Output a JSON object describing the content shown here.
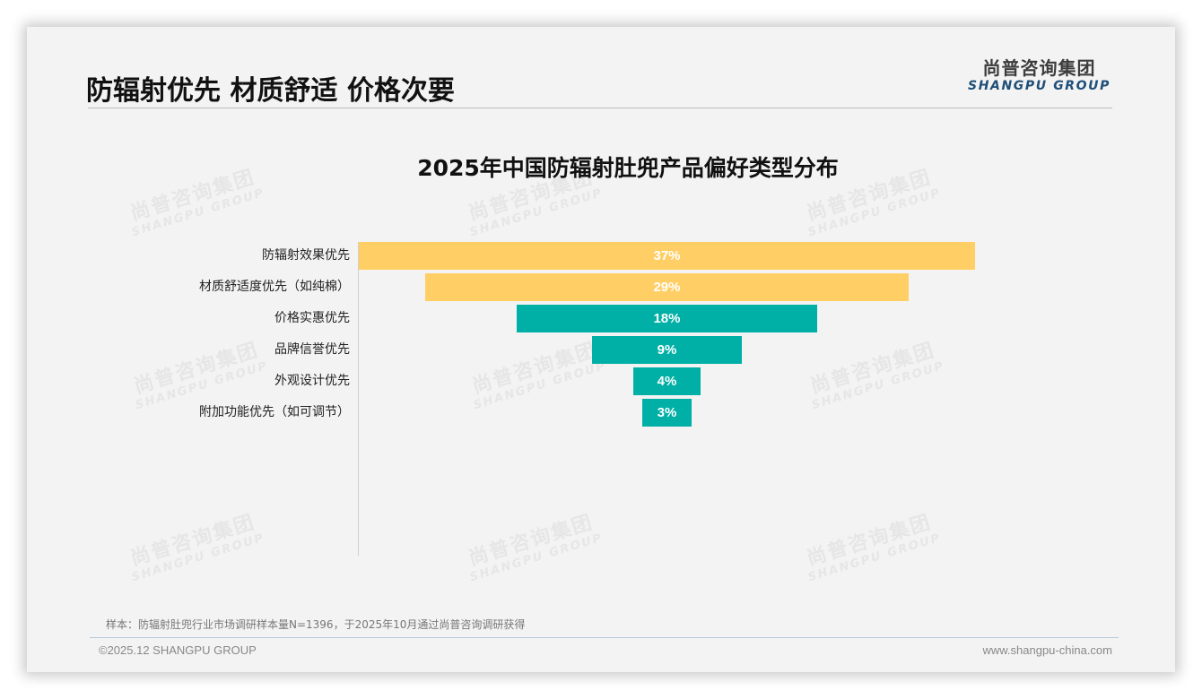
{
  "header": {
    "title": "防辐射优先 材质舒适 价格次要",
    "logo_cn": "尚普咨询集团",
    "logo_en": "SHANGPU GROUP"
  },
  "watermark": {
    "cn": "尚普咨询集团",
    "en": "SHANGPU GROUP"
  },
  "colors": {
    "highlight": "#FFCF66",
    "standard": "#00B0A6",
    "slide_background": "#F3F3F3",
    "logo_en": "#1F4E79"
  },
  "chart_data": {
    "type": "bar",
    "orientation": "horizontal-funnel",
    "title": "2025年中国防辐射肚兜产品偏好类型分布",
    "categories": [
      "防辐射效果优先",
      "材质舒适度优先（如纯棉）",
      "价格实惠优先",
      "品牌信誉优先",
      "外观设计优先",
      "附加功能优先（如可调节）"
    ],
    "values": [
      37,
      29,
      18,
      9,
      4,
      3
    ],
    "value_labels": [
      "37%",
      "29%",
      "18%",
      "9%",
      "4%",
      "3%"
    ],
    "bar_colors": [
      "#FFCF66",
      "#FFCF66",
      "#00B0A6",
      "#00B0A6",
      "#00B0A6",
      "#00B0A6"
    ],
    "unit": "%",
    "xlabel": "",
    "ylabel": "",
    "grid": false,
    "legend": null
  },
  "footer": {
    "note": "样本：防辐射肚兜行业市场调研样本量N=1396，于2025年10月通过尚普咨询调研获得",
    "copyright": "©2025.12 SHANGPU GROUP",
    "website": "www.shangpu-china.com"
  }
}
